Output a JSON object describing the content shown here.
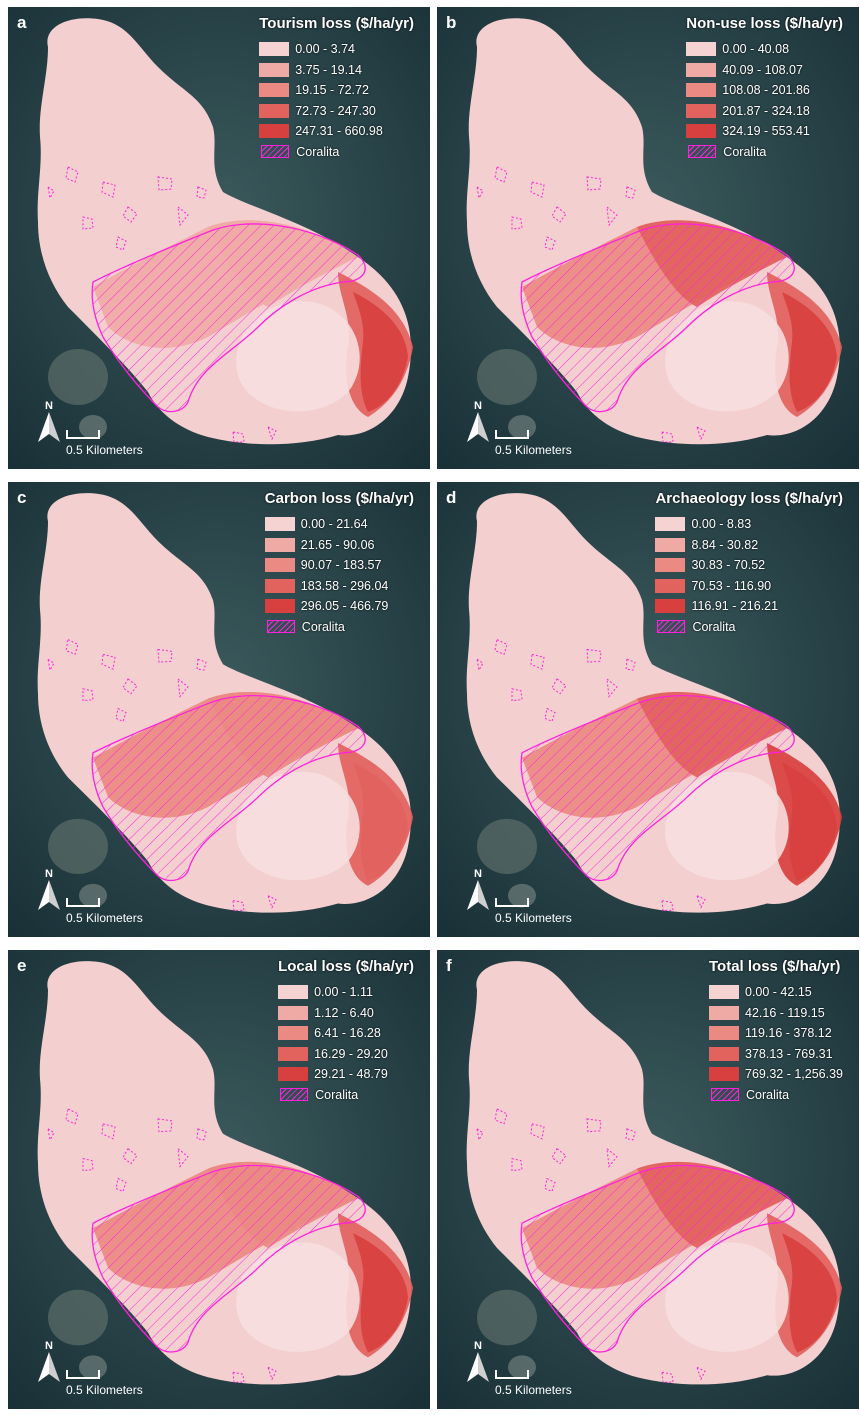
{
  "colors": {
    "sea": "#1f3d44",
    "island": "#f4cfcf",
    "class1": "#f6d3d3",
    "class2": "#f0aaa6",
    "class3": "#ea8a82",
    "class4": "#e2625e",
    "class5": "#d8403f",
    "coralita": "#ff22dd"
  },
  "map_common": {
    "north_label": "N",
    "scale_label": "0.5 Kilometers",
    "coralita_label": "Coralita"
  },
  "panels": [
    {
      "letter": "a",
      "title": "Tourism loss ($/ha/yr)",
      "classes": [
        "0.00 - 3.74",
        "3.75 - 19.14",
        "19.15 - 72.72",
        "72.73 - 247.30",
        "247.31 - 660.98"
      ]
    },
    {
      "letter": "b",
      "title": "Non-use loss ($/ha/yr)",
      "classes": [
        "0.00 - 40.08",
        "40.09 - 108.07",
        "108.08 - 201.86",
        "201.87 - 324.18",
        "324.19 - 553.41"
      ]
    },
    {
      "letter": "c",
      "title": "Carbon loss ($/ha/yr)",
      "classes": [
        "0.00 - 21.64",
        "21.65 - 90.06",
        "90.07 - 183.57",
        "183.58 - 296.04",
        "296.05 - 466.79"
      ]
    },
    {
      "letter": "d",
      "title": "Archaeology loss ($/ha/yr)",
      "classes": [
        "0.00 - 8.83",
        "8.84 - 30.82",
        "30.83 - 70.52",
        "70.53 - 116.90",
        "116.91 - 216.21"
      ]
    },
    {
      "letter": "e",
      "title": "Local loss ($/ha/yr)",
      "classes": [
        "0.00 - 1.11",
        "1.12 - 6.40",
        "6.41 - 16.28",
        "16.29 - 29.20",
        "29.21 - 48.79"
      ]
    },
    {
      "letter": "f",
      "title": "Total loss ($/ha/yr)",
      "classes": [
        "0.00 - 42.15",
        "42.16 - 119.15",
        "119.16 - 378.12",
        "378.13 - 769.31",
        "769.32 - 1,256.39"
      ]
    }
  ]
}
